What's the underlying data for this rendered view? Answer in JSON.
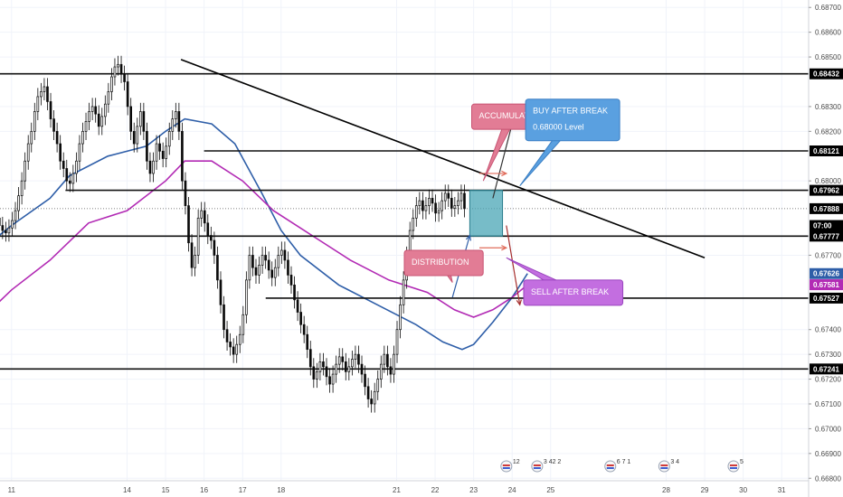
{
  "chart_data": {
    "type": "candlestick",
    "title": "",
    "x_labels": [
      "11",
      "14",
      "15",
      "16",
      "17",
      "18",
      "21",
      "22",
      "23",
      "24",
      "25",
      "28",
      "29",
      "30",
      "31"
    ],
    "y_ticks": [
      "0.68700",
      "0.68600",
      "0.68500",
      "0.68300",
      "0.68200",
      "0.68000",
      "0.67700",
      "0.67400",
      "0.67300",
      "0.67200",
      "0.67100",
      "0.67000",
      "0.66900",
      "0.66800"
    ],
    "y_range": [
      0.6679,
      0.6873
    ],
    "x_range": [
      10.7,
      31.7
    ],
    "candle_series": {
      "start_day": 10.6,
      "step_days": 0.0833,
      "closes": [
        0.6785,
        0.6782,
        0.678,
        0.6779,
        0.6781,
        0.6784,
        0.6788,
        0.6794,
        0.68,
        0.6808,
        0.6815,
        0.682,
        0.6828,
        0.6834,
        0.6836,
        0.6838,
        0.6832,
        0.6825,
        0.682,
        0.6815,
        0.6808,
        0.6805,
        0.68,
        0.6799,
        0.6803,
        0.6808,
        0.6815,
        0.682,
        0.6824,
        0.6828,
        0.683,
        0.6827,
        0.6822,
        0.6826,
        0.6831,
        0.6836,
        0.6842,
        0.6846,
        0.6847,
        0.6843,
        0.684,
        0.683,
        0.682,
        0.6815,
        0.6822,
        0.6828,
        0.682,
        0.6808,
        0.6803,
        0.6808,
        0.6815,
        0.6812,
        0.6809,
        0.6814,
        0.682,
        0.6825,
        0.6828,
        0.682,
        0.68,
        0.679,
        0.6775,
        0.6765,
        0.677,
        0.6785,
        0.6788,
        0.6783,
        0.6778,
        0.6776,
        0.677,
        0.676,
        0.675,
        0.674,
        0.6735,
        0.6733,
        0.673,
        0.6734,
        0.6738,
        0.6746,
        0.676,
        0.677,
        0.6765,
        0.6762,
        0.6766,
        0.677,
        0.6768,
        0.6764,
        0.6761,
        0.6765,
        0.677,
        0.6772,
        0.6768,
        0.6762,
        0.6758,
        0.6752,
        0.6747,
        0.6742,
        0.6738,
        0.6732,
        0.6725,
        0.672,
        0.6723,
        0.6727,
        0.6725,
        0.6721,
        0.6718,
        0.6722,
        0.6726,
        0.6729,
        0.6727,
        0.6723,
        0.6725,
        0.6728,
        0.673,
        0.6726,
        0.6722,
        0.6717,
        0.6712,
        0.671,
        0.6715,
        0.672,
        0.6726,
        0.673,
        0.6725,
        0.6722,
        0.673,
        0.674,
        0.675,
        0.676,
        0.677,
        0.678,
        0.6785,
        0.679,
        0.6792,
        0.6788,
        0.679,
        0.6793,
        0.6791,
        0.6787,
        0.6788,
        0.6792,
        0.6795,
        0.6793,
        0.6789,
        0.679,
        0.6792,
        0.6795,
        0.67888
      ]
    },
    "moving_averages": [
      {
        "color": "#2e5ea8",
        "points": [
          [
            10.6,
            0.6777
          ],
          [
            11.0,
            0.6782
          ],
          [
            12.0,
            0.6793
          ],
          [
            12.5,
            0.6802
          ],
          [
            13.5,
            0.681
          ],
          [
            14.5,
            0.6814
          ],
          [
            15.0,
            0.682
          ],
          [
            15.5,
            0.6825
          ],
          [
            16.2,
            0.6823
          ],
          [
            16.8,
            0.6815
          ],
          [
            17.5,
            0.6795
          ],
          [
            18.0,
            0.678
          ],
          [
            18.5,
            0.677
          ],
          [
            19.5,
            0.6758
          ],
          [
            20.5,
            0.675
          ],
          [
            21.5,
            0.6742
          ],
          [
            22.2,
            0.6735
          ],
          [
            22.7,
            0.6732
          ],
          [
            23.0,
            0.6734
          ],
          [
            23.5,
            0.6743
          ],
          [
            24.0,
            0.6753
          ],
          [
            24.4,
            0.67626
          ]
        ]
      },
      {
        "color": "#b22ab4",
        "points": [
          [
            10.6,
            0.675
          ],
          [
            11.0,
            0.6756
          ],
          [
            12.0,
            0.6768
          ],
          [
            13.0,
            0.6783
          ],
          [
            14.0,
            0.6788
          ],
          [
            15.0,
            0.68
          ],
          [
            15.5,
            0.6808
          ],
          [
            16.2,
            0.6808
          ],
          [
            17.0,
            0.68
          ],
          [
            17.8,
            0.6788
          ],
          [
            18.8,
            0.6778
          ],
          [
            19.8,
            0.6768
          ],
          [
            20.8,
            0.676
          ],
          [
            21.8,
            0.6755
          ],
          [
            22.5,
            0.6748
          ],
          [
            23.0,
            0.6745
          ],
          [
            23.5,
            0.6748
          ],
          [
            24.0,
            0.6753
          ],
          [
            24.4,
            0.67581
          ]
        ]
      }
    ],
    "horizontal_levels": [
      {
        "value": 0.68432,
        "from": 10.7
      },
      {
        "value": 0.68121,
        "from": 16.0
      },
      {
        "value": 0.67962,
        "from": 12.4
      },
      {
        "value": 0.67777,
        "from": 10.7
      },
      {
        "value": 0.67527,
        "from": 17.6
      },
      {
        "value": 0.67241,
        "from": 10.7
      }
    ],
    "current_price_line": 0.67888,
    "trendline": {
      "points": [
        [
          15.4,
          0.6849
        ],
        [
          29.0,
          0.6769
        ]
      ],
      "color": "#000000"
    },
    "accumulation_box": {
      "from": 22.9,
      "to": 23.75,
      "top": 0.67962,
      "bottom": 0.67777,
      "color": "#4aa5b5"
    },
    "arrows": [
      {
        "from": [
          22.45,
          0.6753
        ],
        "to": [
          22.9,
          0.6778
        ],
        "color": "#2e5ea8"
      },
      {
        "from": [
          23.5,
          0.6793
        ],
        "to": [
          24.05,
          0.6826
        ],
        "color": "#333333"
      },
      {
        "from": [
          23.15,
          0.6803
        ],
        "to": [
          23.85,
          0.6803
        ],
        "color": "#e06b5a"
      },
      {
        "from": [
          23.15,
          0.6773
        ],
        "to": [
          23.85,
          0.6773
        ],
        "color": "#e06b5a"
      },
      {
        "from": [
          23.85,
          0.6782
        ],
        "to": [
          24.2,
          0.675
        ],
        "color": "#a52d2d"
      }
    ],
    "callouts": [
      {
        "lines": [
          "ACCUMULATION"
        ],
        "x": 22.95,
        "y": 0.6831,
        "tail_x": 23.25,
        "tail_y": 0.68,
        "fill": "#e27c95",
        "border": "#c85372"
      },
      {
        "lines": [
          "BUY AFTER BREAK",
          "0.68000 Level"
        ],
        "x": 24.35,
        "y": 0.6833,
        "tail_x": 24.2,
        "tail_y": 0.6798,
        "fill": "#5aa0e0",
        "border": "#3b7fc4"
      },
      {
        "lines": [
          "DISTRIBUTION"
        ],
        "x": 21.2,
        "y": 0.6772,
        "tail_x": 22.45,
        "tail_y": 0.6759,
        "fill": "#e27c95",
        "border": "#c85372"
      },
      {
        "lines": [
          "SELL AFTER BREAK"
        ],
        "x": 24.3,
        "y": 0.676,
        "tail_x": 23.85,
        "tail_y": 0.6769,
        "fill": "#c36ee0",
        "border": "#9a45bf"
      }
    ],
    "price_tags": [
      {
        "label": "0.68432",
        "value": 0.68432,
        "bg": "#000000"
      },
      {
        "label": "0.68121",
        "value": 0.68121,
        "bg": "#000000"
      },
      {
        "label": "0.67962",
        "value": 0.67962,
        "bg": "#000000"
      },
      {
        "label": "0.67888",
        "value": 0.67888,
        "bg": "#000000"
      },
      {
        "label": "07:00",
        "value": 0.6782,
        "bg": "#000000"
      },
      {
        "label": "0.67777",
        "value": 0.67777,
        "bg": "#000000"
      },
      {
        "label": "0.67626",
        "value": 0.67626,
        "bg": "#2e5ea8"
      },
      {
        "label": "0.67581",
        "value": 0.67581,
        "bg": "#b22ab4"
      },
      {
        "label": "0.67527",
        "value": 0.67527,
        "bg": "#000000"
      },
      {
        "label": "0.67241",
        "value": 0.67241,
        "bg": "#000000"
      }
    ],
    "events": [
      {
        "day": 23.85,
        "label": "12"
      },
      {
        "day": 24.65,
        "label": "3 42 2"
      },
      {
        "day": 26.55,
        "label": "6 7 1"
      },
      {
        "day": 27.95,
        "label": "3 4"
      },
      {
        "day": 29.75,
        "label": "5"
      }
    ],
    "colors": {
      "up": "#0a0a0a",
      "down": "#0a0a0a",
      "grid": "#f0f3fa"
    }
  }
}
